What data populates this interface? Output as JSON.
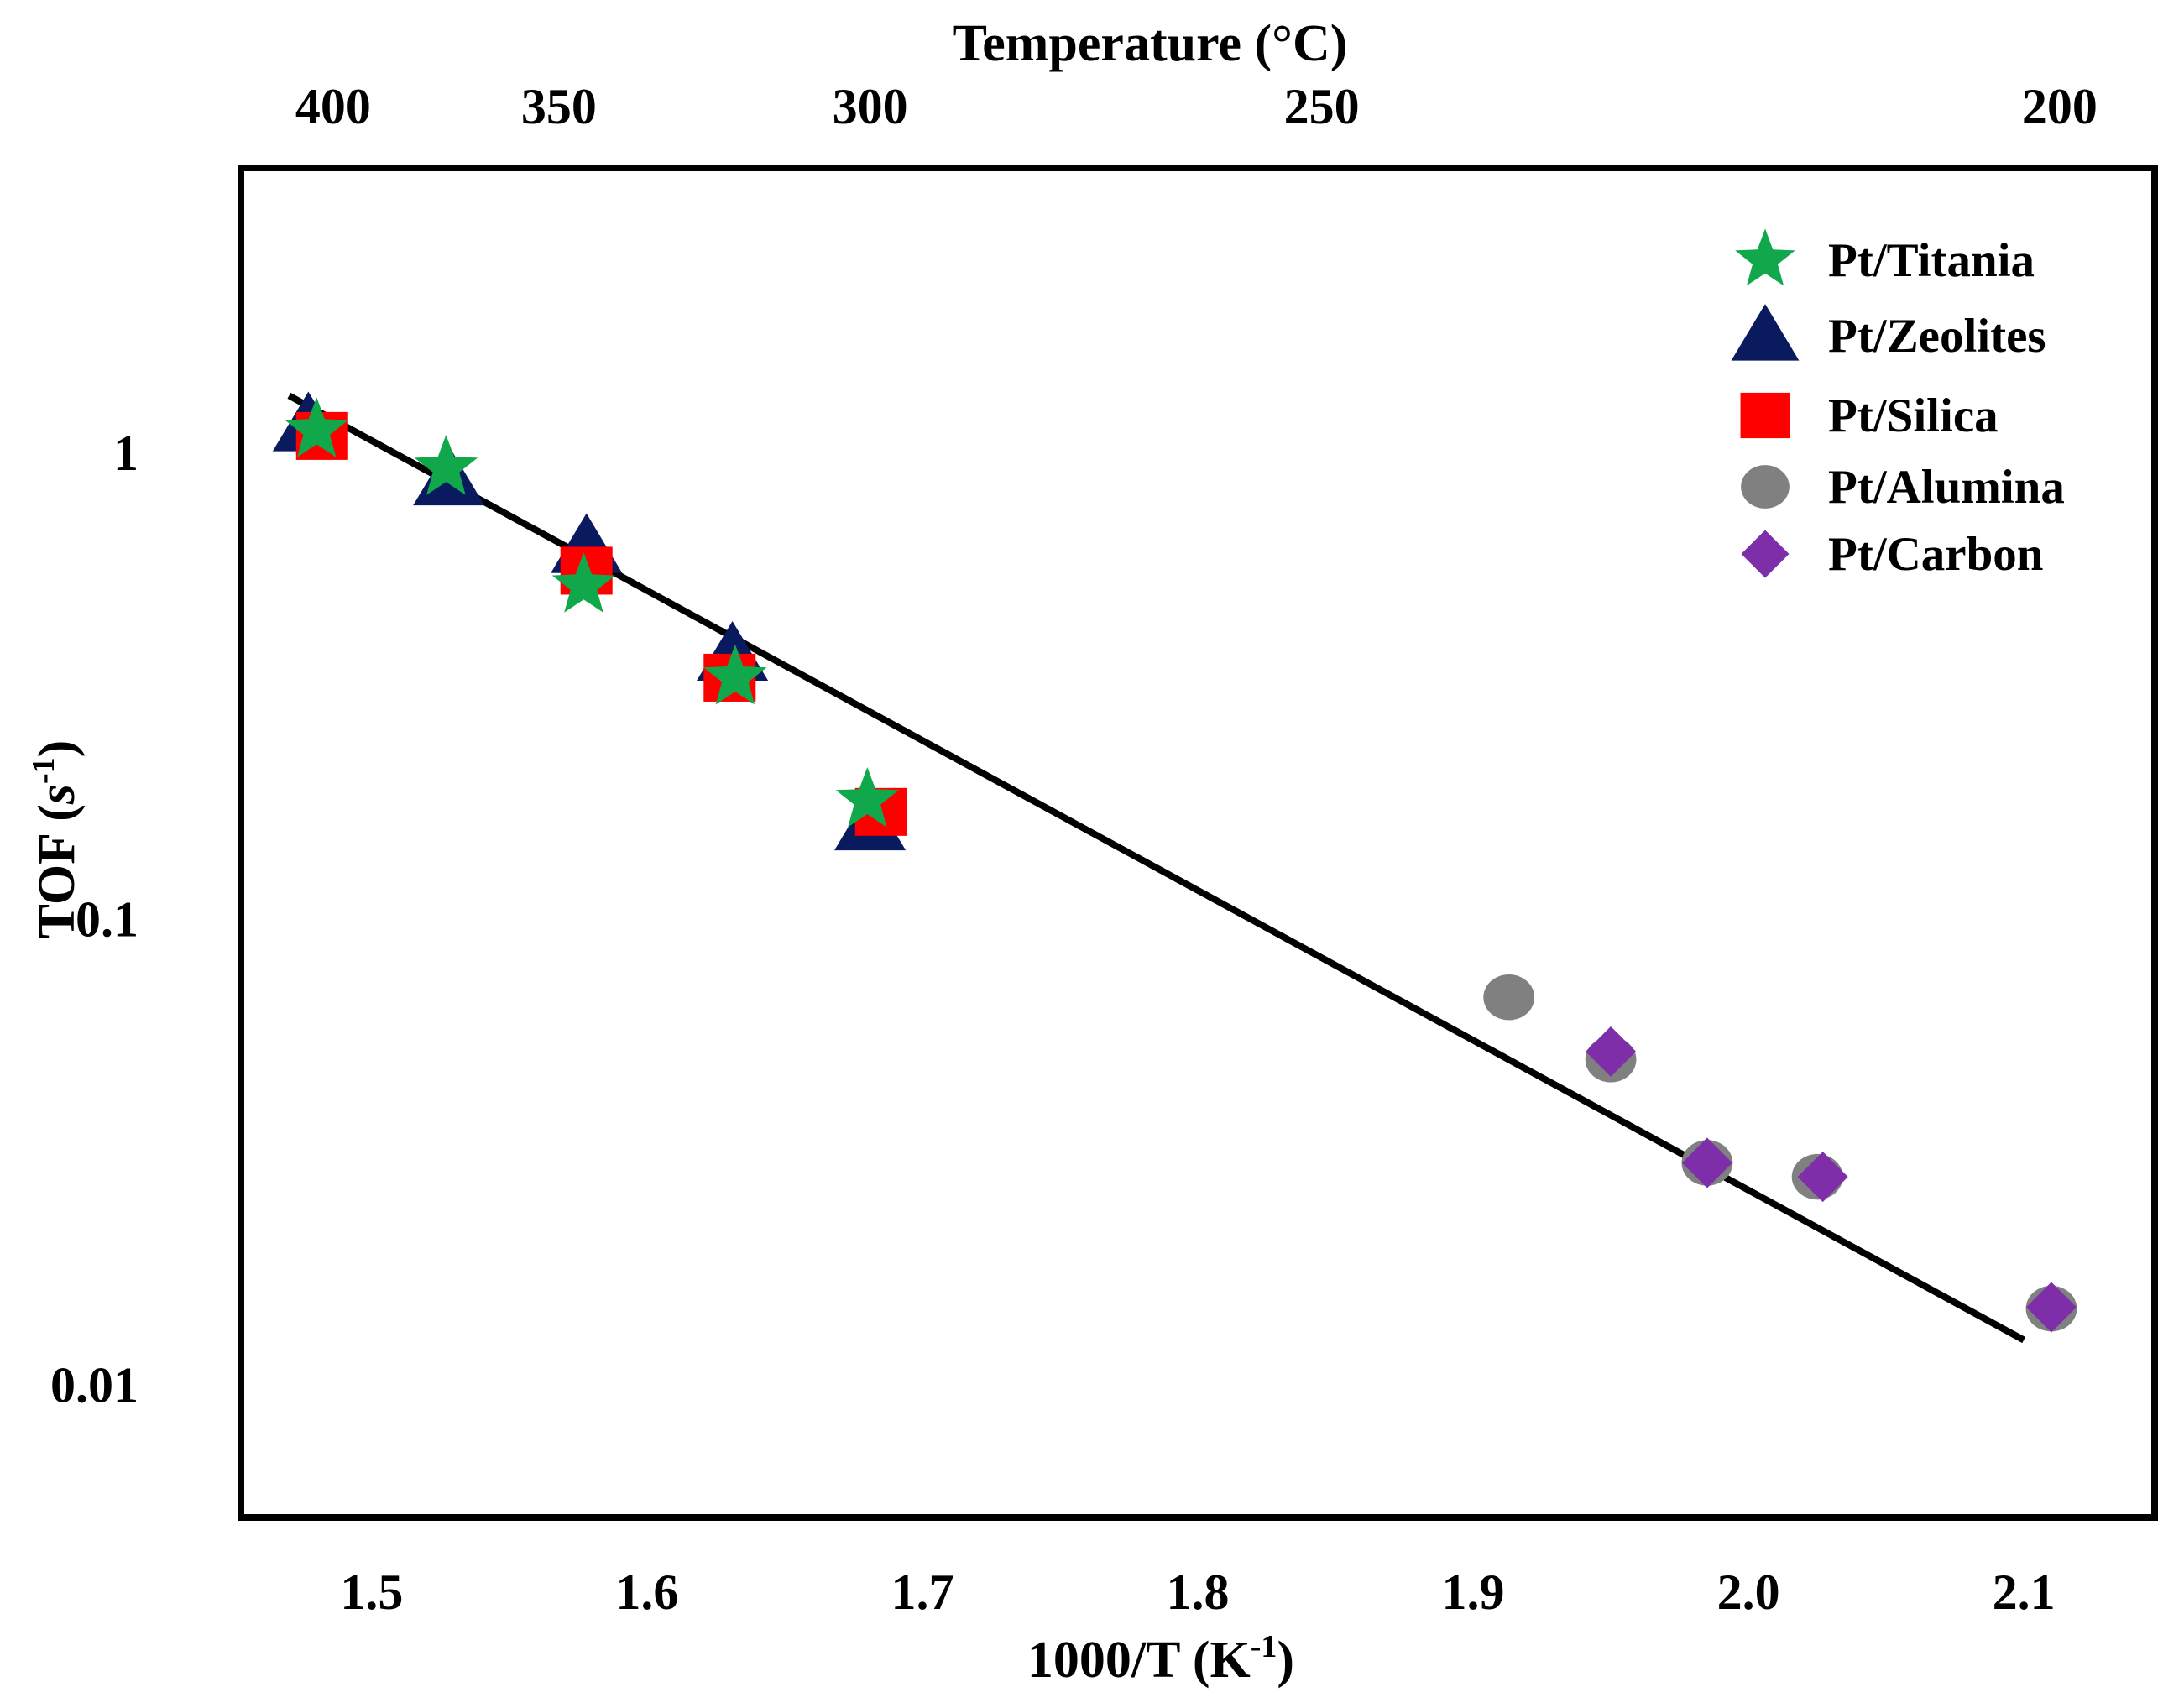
{
  "chart_data": {
    "type": "scatter",
    "xlabel": "1000/T (K",
    "xlabel_sup": "-1",
    "xlabel_end": ")",
    "ylabel": "TOF (",
    "ylabel_unit": "s",
    "ylabel_sup": "-1",
    "ylabel_end": ")",
    "top_xlabel": "Temperature (°C)",
    "yscale": "log",
    "xlim": [
      1.4525,
      2.1475
    ],
    "ylim": [
      0.0052,
      4.1
    ],
    "x_ticks": [
      {
        "value": 1.5,
        "label": "1.5"
      },
      {
        "value": 1.6,
        "label": "1.6"
      },
      {
        "value": 1.7,
        "label": "1.7"
      },
      {
        "value": 1.8,
        "label": "1.8"
      },
      {
        "value": 1.9,
        "label": "1.9"
      },
      {
        "value": 2.0,
        "label": "2.0"
      },
      {
        "value": 2.1,
        "label": "2.1"
      }
    ],
    "y_ticks": [
      {
        "value": 1,
        "label": "1"
      },
      {
        "value": 0.1,
        "label": "0.1"
      },
      {
        "value": 0.01,
        "label": "0.01"
      }
    ],
    "top_ticks": [
      {
        "value": 1.486,
        "label": "400"
      },
      {
        "value": 1.568,
        "label": "350"
      },
      {
        "value": 1.681,
        "label": "300"
      },
      {
        "value": 1.845,
        "label": "250"
      },
      {
        "value": 2.113,
        "label": "200"
      }
    ],
    "legend_position": "top-right",
    "series": [
      {
        "name": "Pt/Titania",
        "marker": "star",
        "color": "#10a84a",
        "points": [
          [
            1.48,
            1.12
          ],
          [
            1.527,
            0.93
          ],
          [
            1.577,
            0.52
          ],
          [
            1.632,
            0.33
          ],
          [
            1.68,
            0.18
          ]
        ]
      },
      {
        "name": "Pt/Zeolites",
        "marker": "triangle",
        "color": "#0a1a5e",
        "points": [
          [
            1.477,
            1.15
          ],
          [
            1.528,
            0.88
          ],
          [
            1.578,
            0.63
          ],
          [
            1.631,
            0.37
          ],
          [
            1.681,
            0.16
          ]
        ]
      },
      {
        "name": "Pt/Silica",
        "marker": "square",
        "color": "#ff0000",
        "points": [
          [
            1.482,
            1.09
          ],
          [
            1.578,
            0.56
          ],
          [
            1.63,
            0.33
          ],
          [
            1.685,
            0.17
          ]
        ]
      },
      {
        "name": "Pt/Alumina",
        "marker": "circle",
        "color": "#808080",
        "points": [
          [
            1.913,
            0.068
          ],
          [
            1.95,
            0.05
          ],
          [
            1.985,
            0.03
          ],
          [
            2.025,
            0.028
          ],
          [
            2.11,
            0.0146
          ]
        ]
      },
      {
        "name": "Pt/Carbon",
        "marker": "diamond",
        "color": "#7e2ea8",
        "points": [
          [
            1.95,
            0.052
          ],
          [
            1.985,
            0.03
          ],
          [
            2.027,
            0.028
          ],
          [
            2.11,
            0.0147
          ]
        ]
      }
    ],
    "fit_line": {
      "name": "fit",
      "color": "#000000",
      "points": [
        [
          1.47,
          1.33
        ],
        [
          2.1,
          0.0125
        ]
      ]
    }
  }
}
